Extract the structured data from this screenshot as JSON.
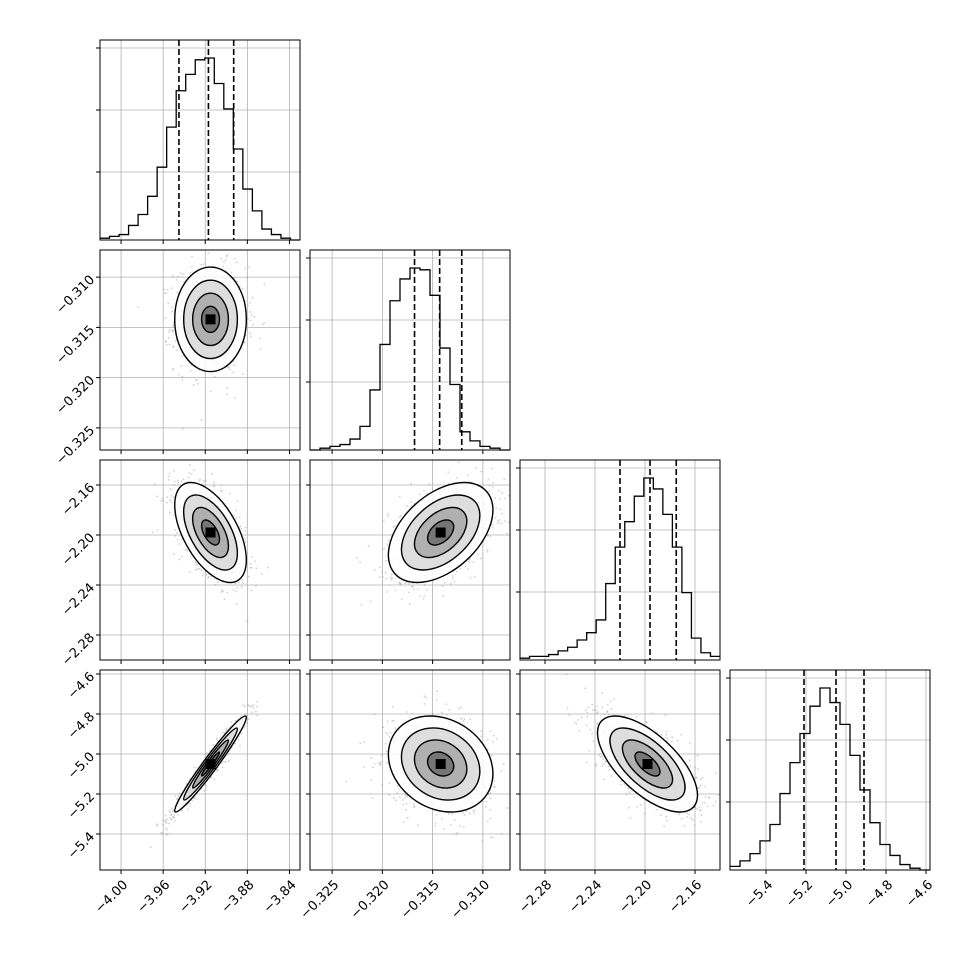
{
  "chart_data": {
    "type": "corner",
    "parameters": [
      {
        "id": "p0",
        "range": [
          -4.02,
          -3.83
        ],
        "ticks": [
          -4.0,
          -3.96,
          -3.92,
          -3.88,
          -3.84
        ],
        "tick_labels": [
          "−4.00",
          "−3.96",
          "−3.92",
          "−3.88",
          "−3.84"
        ],
        "quantiles": [
          -3.945,
          -3.917,
          -3.893
        ],
        "hist_bins": [
          -4.02,
          -3.83
        ],
        "hist_counts": [
          1,
          2,
          3,
          8,
          14,
          24,
          40,
          62,
          82,
          91,
          99,
          100,
          86,
          72,
          50,
          28,
          16,
          6,
          3,
          1,
          0
        ]
      },
      {
        "id": "p1",
        "range": [
          -0.3272,
          -0.3073
        ],
        "ticks": [
          -0.325,
          -0.32,
          -0.315,
          -0.31
        ],
        "tick_labels": [
          "−0.325",
          "−0.320",
          "−0.315",
          "−0.310"
        ],
        "quantiles": [
          -0.3168,
          -0.3143,
          -0.3121
        ],
        "hist_bins": [
          -0.3272,
          -0.3073
        ],
        "hist_counts": [
          0,
          1,
          2,
          3,
          6,
          13,
          33,
          58,
          82,
          94,
          100,
          99,
          85,
          56,
          36,
          10,
          5,
          2,
          1,
          0
        ]
      },
      {
        "id": "p2",
        "range": [
          -2.3,
          -2.14
        ],
        "ticks": [
          -2.28,
          -2.24,
          -2.2,
          -2.16
        ],
        "tick_labels": [
          "−2.28",
          "−2.24",
          "−2.20",
          "−2.16"
        ],
        "quantiles": [
          -2.22,
          -2.196,
          -2.175
        ],
        "hist_bins": [
          -2.3,
          -2.14
        ],
        "hist_counts": [
          1,
          2,
          2,
          3,
          5,
          7,
          11,
          15,
          22,
          42,
          62,
          76,
          90,
          100,
          94,
          80,
          62,
          37,
          12,
          4,
          2
        ]
      },
      {
        "id": "p3",
        "range": [
          -5.58,
          -4.58
        ],
        "ticks": [
          -5.4,
          -5.2,
          -5.0,
          -4.8,
          -4.6
        ],
        "tick_labels": [
          "−5.4",
          "−5.2",
          "−5.0",
          "−4.8",
          "−4.6"
        ],
        "quantiles": [
          -5.21,
          -5.05,
          -4.91
        ],
        "hist_bins": [
          -5.58,
          -4.58
        ],
        "hist_counts": [
          2,
          5,
          9,
          16,
          25,
          42,
          59,
          75,
          90,
          100,
          92,
          80,
          63,
          44,
          26,
          14,
          8,
          3,
          1,
          0
        ]
      }
    ],
    "pairs": [
      {
        "x": "p0",
        "y": "p1",
        "mean": [
          -3.915,
          -0.3142
        ],
        "sd": [
          0.017,
          0.0026
        ],
        "rho": 0.0
      },
      {
        "x": "p0",
        "y": "p2",
        "mean": [
          -3.915,
          -2.198
        ],
        "sd": [
          0.017,
          0.02
        ],
        "rho": -0.55
      },
      {
        "x": "p1",
        "y": "p2",
        "mean": [
          -0.3142,
          -2.198
        ],
        "sd": [
          0.0026,
          0.02
        ],
        "rho": 0.45
      },
      {
        "x": "p0",
        "y": "p3",
        "mean": [
          -3.915,
          -5.05
        ],
        "sd": [
          0.017,
          0.12
        ],
        "rho": 0.97
      },
      {
        "x": "p1",
        "y": "p3",
        "mean": [
          -0.3142,
          -5.05
        ],
        "sd": [
          0.0026,
          0.12
        ],
        "rho": -0.2
      },
      {
        "x": "p2",
        "y": "p3",
        "mean": [
          -2.198,
          -5.05
        ],
        "sd": [
          0.02,
          0.12
        ],
        "rho": -0.65
      }
    ],
    "grid": true,
    "histogram_style": "step",
    "quantile_line_style": "dashed",
    "colors": {
      "line": "#000000",
      "grid": "#b0b0b0",
      "density": "#000000",
      "background": "#ffffff"
    }
  }
}
